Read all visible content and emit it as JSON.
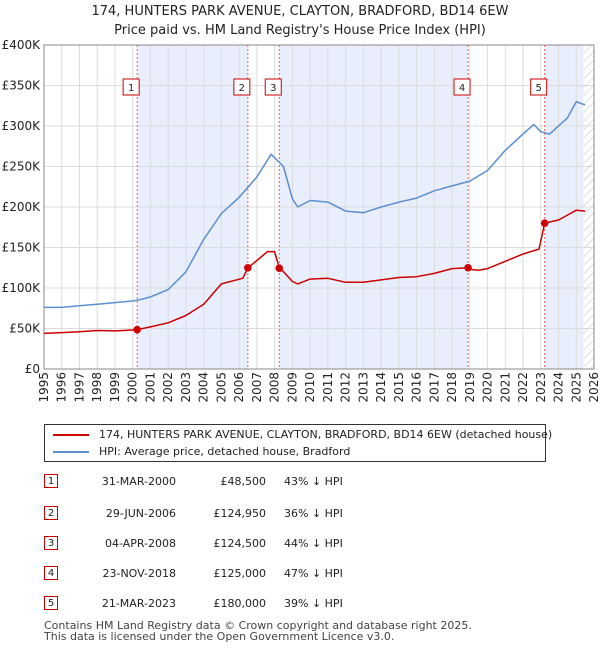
{
  "title_line1": "174, HUNTERS PARK AVENUE, CLAYTON, BRADFORD, BD14 6EW",
  "title_line2": "Price paid vs. HM Land Registry's House Price Index (HPI)",
  "chart_data": {
    "type": "line",
    "xlim": [
      1995,
      2026
    ],
    "ylim": [
      0,
      400000
    ],
    "x_ticks": [
      1995,
      1996,
      1997,
      1998,
      1999,
      2000,
      2001,
      2002,
      2003,
      2004,
      2005,
      2006,
      2007,
      2008,
      2009,
      2010,
      2011,
      2012,
      2013,
      2014,
      2015,
      2016,
      2017,
      2018,
      2019,
      2020,
      2021,
      2022,
      2023,
      2024,
      2025,
      2026
    ],
    "y_ticks": [
      0,
      50000,
      100000,
      150000,
      200000,
      250000,
      300000,
      350000,
      400000
    ],
    "y_tick_labels": [
      "£0",
      "£50K",
      "£100K",
      "£150K",
      "£200K",
      "£250K",
      "£300K",
      "£350K",
      "£400K"
    ],
    "projection_start": 2025.4,
    "shaded_ranges": [
      [
        2000.25,
        2006.49
      ],
      [
        2008.26,
        2018.9
      ],
      [
        2023.22,
        2025.4
      ]
    ],
    "series": [
      {
        "name": "174, HUNTERS PARK AVENUE, CLAYTON, BRADFORD, BD14 6EW (detached house)",
        "color": "#cc0000",
        "x": [
          1995,
          1996,
          1997,
          1998,
          1999,
          2000.25,
          2001,
          2002,
          2003,
          2004,
          2005,
          2006.2,
          2006.49,
          2007,
          2007.6,
          2008.0,
          2008.26,
          2008.5,
          2009,
          2009.3,
          2010,
          2011,
          2012,
          2013,
          2014,
          2015,
          2016,
          2017,
          2018,
          2018.9,
          2019,
          2019.5,
          2020,
          2021,
          2022,
          2022.9,
          2023.22,
          2023.6,
          2024,
          2024.5,
          2025,
          2025.5
        ],
        "y": [
          44000,
          45000,
          46000,
          47500,
          47000,
          48500,
          52000,
          57000,
          66000,
          80000,
          105000,
          112000,
          124950,
          134000,
          145000,
          145000,
          124500,
          120000,
          108000,
          105000,
          111000,
          112000,
          107000,
          107000,
          110000,
          113000,
          114000,
          118000,
          124000,
          125000,
          123000,
          122000,
          124000,
          133000,
          142000,
          148000,
          180000,
          182000,
          184000,
          190000,
          196000,
          195000
        ]
      },
      {
        "name": "HPI: Average price, detached house, Bradford",
        "color": "#5a8fd0",
        "x": [
          1995,
          1996,
          1997,
          1998,
          1999,
          2000,
          2000.5,
          2001,
          2002,
          2003,
          2004,
          2005,
          2006,
          2007,
          2007.8,
          2008.5,
          2009.0,
          2009.3,
          2010,
          2011,
          2012,
          2013,
          2014,
          2015,
          2016,
          2017,
          2018,
          2019,
          2020,
          2021,
          2022,
          2022.6,
          2023,
          2023.5,
          2024,
          2024.5,
          2025,
          2025.5
        ],
        "y": [
          76000,
          76000,
          78000,
          80000,
          82000,
          84000,
          86000,
          89000,
          98000,
          120000,
          160000,
          192000,
          212000,
          237000,
          265000,
          250000,
          210000,
          200000,
          208000,
          206000,
          195000,
          193000,
          200000,
          206000,
          211000,
          220000,
          226000,
          232000,
          245000,
          270000,
          290000,
          302000,
          293000,
          290000,
          300000,
          310000,
          330000,
          326000
        ]
      }
    ],
    "markers": [
      {
        "label": "1",
        "x": 2000.25,
        "y": 48500
      },
      {
        "label": "2",
        "x": 2006.49,
        "y": 124950
      },
      {
        "label": "3",
        "x": 2008.26,
        "y": 124500
      },
      {
        "label": "4",
        "x": 2018.9,
        "y": 125000
      },
      {
        "label": "5",
        "x": 2023.22,
        "y": 180000
      }
    ]
  },
  "legend": {
    "property_label": "174, HUNTERS PARK AVENUE, CLAYTON, BRADFORD, BD14 6EW (detached house)",
    "hpi_label": "HPI: Average price, detached house, Bradford",
    "property_color": "#cc0000",
    "hpi_color": "#5a8fd0"
  },
  "transactions": [
    {
      "num": "1",
      "date": "31-MAR-2000",
      "price": "£48,500",
      "hpi": "43% ↓ HPI"
    },
    {
      "num": "2",
      "date": "29-JUN-2006",
      "price": "£124,950",
      "hpi": "36% ↓ HPI"
    },
    {
      "num": "3",
      "date": "04-APR-2008",
      "price": "£124,500",
      "hpi": "44% ↓ HPI"
    },
    {
      "num": "4",
      "date": "23-NOV-2018",
      "price": "£125,000",
      "hpi": "47% ↓ HPI"
    },
    {
      "num": "5",
      "date": "21-MAR-2023",
      "price": "£180,000",
      "hpi": "39% ↓ HPI"
    }
  ],
  "footer_line1": "Contains HM Land Registry data © Crown copyright and database right 2025.",
  "footer_line2": "This data is licensed under the Open Government Licence v3.0."
}
